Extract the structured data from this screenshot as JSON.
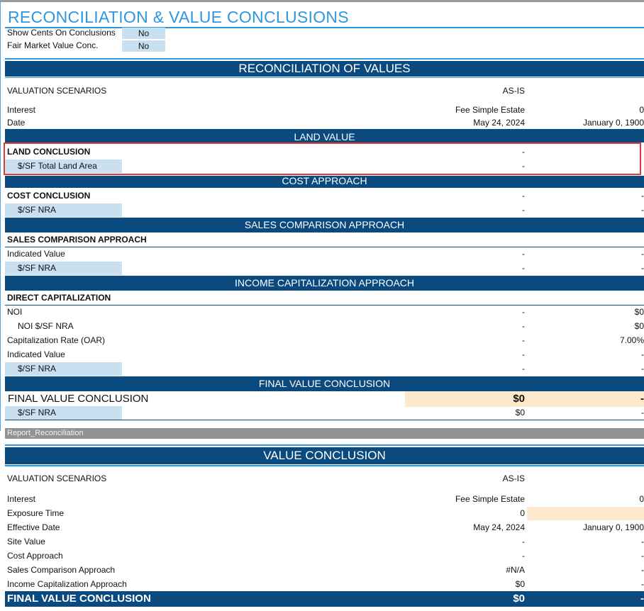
{
  "header": {
    "title": "RECONCILIATION & VALUE CONCLUSIONS",
    "options": [
      {
        "label": "Show Cents On Conclusions",
        "value": "No"
      },
      {
        "label": "Fair Market Value Conc.",
        "value": "No"
      }
    ]
  },
  "recon": {
    "band_title": "RECONCILIATION OF VALUES",
    "scenarios_label": "VALUATION SCENARIOS",
    "scenario_mid": "AS-IS",
    "interest_label": "Interest",
    "interest_mid": "Fee Simple Estate",
    "interest_right": "0",
    "date_label": "Date",
    "date_mid": "May 24, 2024",
    "date_right": "January 0, 1900",
    "land": {
      "band": "LAND VALUE",
      "conclusion_label": "LAND CONCLUSION",
      "conclusion_mid": "-",
      "sf_label": "$/SF Total Land Area",
      "sf_mid": "-"
    },
    "cost": {
      "band": "COST APPROACH",
      "conclusion_label": "COST CONCLUSION",
      "conclusion_mid": "-",
      "conclusion_right": "-",
      "sf_label": "$/SF NRA",
      "sf_mid": "-",
      "sf_right": "-"
    },
    "sales": {
      "band": "SALES COMPARISON APPROACH",
      "heading": "SALES COMPARISON APPROACH",
      "indicated_label": "Indicated Value",
      "indicated_mid": "-",
      "indicated_right": "-",
      "sf_label": "$/SF NRA",
      "sf_mid": "-",
      "sf_right": "-"
    },
    "income": {
      "band": "INCOME CAPITALIZATION APPROACH",
      "heading": "DIRECT CAPITALIZATION",
      "noi_label": "NOI",
      "noi_mid": "-",
      "noi_right": "$0",
      "noi_sf_label": "NOI $/SF NRA",
      "noi_sf_mid": "-",
      "noi_sf_right": "$0",
      "cap_label": "Capitalization Rate (OAR)",
      "cap_mid": "-",
      "cap_right": "7.00%",
      "indicated_label": "Indicated Value",
      "indicated_mid": "-",
      "indicated_right": "-",
      "sf_label": "$/SF NRA",
      "sf_mid": "-",
      "sf_right": "-"
    },
    "final": {
      "band": "FINAL VALUE CONCLUSION",
      "label": "FINAL VALUE CONCLUSION",
      "mid": "$0",
      "right": "-",
      "sf_label": "$/SF NRA",
      "sf_mid": "$0",
      "sf_right": "-"
    }
  },
  "sheet_tab": "Report_Reconciliation",
  "value_conclusion": {
    "band_title": "VALUE CONCLUSION",
    "scenarios_label": "VALUATION SCENARIOS",
    "scenario_mid": "AS-IS",
    "rows": [
      {
        "label": "Interest",
        "mid": "Fee Simple Estate",
        "right": "0"
      },
      {
        "label": "Exposure Time",
        "mid": "0",
        "right": ""
      },
      {
        "label": "Effective Date",
        "mid": "May 24, 2024",
        "right": "January 0, 1900"
      },
      {
        "label": "Site Value",
        "mid": "-",
        "right": "-"
      },
      {
        "label": "Cost Approach",
        "mid": "-",
        "right": "-"
      },
      {
        "label": "Sales Comparison Approach",
        "mid": "#N/A",
        "right": "-"
      },
      {
        "label": "Income Capitalization Approach",
        "mid": "$0",
        "right": "-"
      }
    ],
    "final_label": "FINAL VALUE CONCLUSION",
    "final_mid": "$0",
    "final_right": "-"
  },
  "colors": {
    "band": "#0b4a7e",
    "accent": "#2f97e0",
    "input_fill": "#c9e0f1",
    "peach_fill": "#fde9cc",
    "highlight": "#e0393b"
  }
}
